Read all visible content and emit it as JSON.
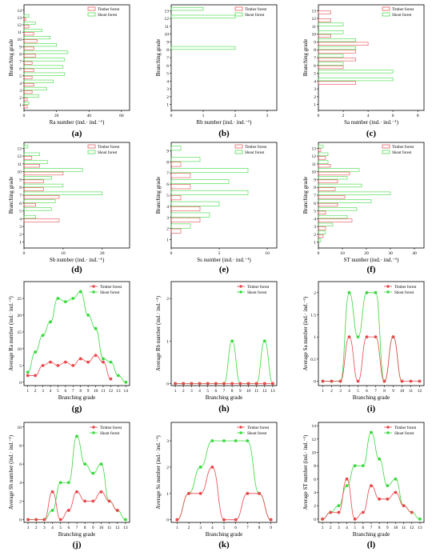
{
  "colors": {
    "timber": "#e8474c",
    "shoot": "#39d93d",
    "axis": "#000000"
  },
  "legend": {
    "timber": "Timber forest",
    "shoot": "Shoot forest"
  },
  "panel_labels": [
    "(a)",
    "(b)",
    "(c)",
    "(d)",
    "(e)",
    "(f)",
    "(g)",
    "(h)",
    "(i)",
    "(j)",
    "(k)",
    "(l)"
  ],
  "chart_data": [
    {
      "type": "bar",
      "orientation": "horizontal",
      "panel": "(a)",
      "ylabel": "Branching grade",
      "xlabel": "Ra number (ind.· ind.⁻¹)",
      "categories": [
        "1",
        "2",
        "3",
        "4",
        "5",
        "6",
        "7",
        "8",
        "9",
        "10",
        "11",
        "12",
        "13",
        "14"
      ],
      "xlim": [
        0,
        65
      ],
      "xticks": [
        0,
        20,
        40,
        60
      ],
      "series": [
        {
          "name": "Timber forest",
          "values": [
            2,
            2,
            5,
            6,
            5,
            6,
            5,
            7,
            6,
            8,
            6,
            3,
            1,
            0
          ]
        },
        {
          "name": "Shoot forest",
          "values": [
            3,
            9,
            14,
            18,
            25,
            24,
            25,
            27,
            20,
            16,
            11,
            7,
            3,
            0
          ]
        }
      ]
    },
    {
      "type": "bar",
      "orientation": "horizontal",
      "panel": "(b)",
      "ylabel": "Branching grade",
      "xlabel": "Rb number (ind.· ind.⁻¹)",
      "categories": [
        "1",
        "2",
        "3",
        "4",
        "5",
        "6",
        "7",
        "8",
        "9",
        "10",
        "11",
        "12",
        "13"
      ],
      "xlim": [
        0,
        3.3
      ],
      "xticks": [
        0,
        1,
        2,
        3
      ],
      "series": [
        {
          "name": "Timber forest",
          "values": [
            0,
            0,
            0,
            0,
            0,
            0,
            0,
            0,
            0,
            0,
            0,
            0,
            0
          ]
        },
        {
          "name": "Shoot forest",
          "values": [
            0,
            0,
            0,
            0,
            0,
            0,
            0,
            2,
            0,
            0,
            0,
            2,
            1
          ]
        }
      ]
    },
    {
      "type": "bar",
      "orientation": "horizontal",
      "panel": "(c)",
      "ylabel": "Branching grade",
      "xlabel": "Sa number (ind.· ind.⁻¹)",
      "categories": [
        "1",
        "2",
        "3",
        "4",
        "5",
        "6",
        "7",
        "8",
        "9",
        "10",
        "11",
        "12",
        "13"
      ],
      "xlim": [
        0,
        8.5
      ],
      "xticks": [
        0,
        2,
        4,
        6,
        8
      ],
      "series": [
        {
          "name": "Timber forest",
          "values": [
            0,
            0,
            0,
            3,
            0,
            2,
            3,
            3,
            4,
            1,
            0,
            1,
            1
          ]
        },
        {
          "name": "Shoot forest",
          "values": [
            0,
            0,
            0,
            6,
            6,
            2,
            2,
            3,
            3,
            2,
            2,
            0,
            0
          ]
        }
      ]
    },
    {
      "type": "bar",
      "orientation": "horizontal",
      "panel": "(d)",
      "ylabel": "Branching grade",
      "xlabel": "Sb number (ind.· ind.⁻¹)",
      "categories": [
        "1",
        "2",
        "3",
        "4",
        "5",
        "6",
        "7",
        "8",
        "9",
        "10",
        "11",
        "12",
        "13"
      ],
      "xlim": [
        0,
        27
      ],
      "xticks": [
        0,
        10,
        20
      ],
      "series": [
        {
          "name": "Timber forest",
          "values": [
            0,
            0,
            0,
            9,
            0,
            3,
            9,
            5,
            5,
            10,
            4,
            2,
            0
          ]
        },
        {
          "name": "Shoot forest",
          "values": [
            0,
            0,
            0,
            3,
            7,
            8,
            20,
            10,
            7,
            15,
            6,
            4,
            1
          ]
        }
      ]
    },
    {
      "type": "bar",
      "orientation": "horizontal",
      "panel": "(e)",
      "ylabel": "Branching grade",
      "xlabel": "Ss number (ind.· ind.⁻¹)",
      "categories": [
        "1",
        "2",
        "3",
        "4",
        "5",
        "6",
        "7",
        "8",
        "9"
      ],
      "xlim": [
        0,
        11
      ],
      "xticks": [
        0,
        5,
        10
      ],
      "series": [
        {
          "name": "Timber forest",
          "values": [
            0,
            1,
            3,
            3,
            1,
            2,
            2,
            1,
            0
          ]
        },
        {
          "name": "Shoot forest",
          "values": [
            0,
            2,
            4,
            5,
            8,
            6,
            8,
            3,
            1
          ]
        }
      ]
    },
    {
      "type": "bar",
      "orientation": "horizontal",
      "panel": "(f)",
      "ylabel": "Branching grade",
      "xlabel": "ST number (ind.· ind.⁻¹)",
      "categories": [
        "1",
        "2",
        "3",
        "4",
        "5",
        "6",
        "7",
        "8",
        "9",
        "10",
        "11",
        "12",
        "13"
      ],
      "xlim": [
        0,
        44
      ],
      "xticks": [
        0,
        10,
        20,
        30,
        40
      ],
      "series": [
        {
          "name": "Timber forest",
          "values": [
            0,
            2,
            3,
            14,
            3,
            8,
            11,
            7,
            8,
            13,
            5,
            3,
            1
          ]
        },
        {
          "name": "Shoot forest",
          "values": [
            1,
            3,
            6,
            12,
            16,
            22,
            30,
            18,
            12,
            17,
            4,
            4,
            2
          ]
        }
      ]
    },
    {
      "type": "line",
      "panel": "(g)",
      "xlabel": "Branching grade",
      "ylabel": "Average Ra number (ind.· ind.⁻¹)",
      "x": [
        1,
        2,
        3,
        4,
        5,
        6,
        7,
        8,
        9,
        10,
        11,
        12,
        13,
        14
      ],
      "xlim": [
        0.5,
        14.5
      ],
      "ylim": [
        -1,
        30
      ],
      "yticks": [
        0,
        5,
        10,
        15,
        20,
        25
      ],
      "series": [
        {
          "name": "Timber forest",
          "values": [
            2,
            2,
            5,
            6,
            5,
            6,
            5,
            7,
            6,
            8,
            6,
            1,
            null,
            null
          ]
        },
        {
          "name": "Shoot forest",
          "values": [
            3,
            9,
            14,
            18,
            25,
            24,
            25,
            27,
            20,
            16,
            7,
            6,
            2,
            0
          ]
        }
      ]
    },
    {
      "type": "line",
      "panel": "(h)",
      "xlabel": "Branching grade",
      "ylabel": "Average Rb number (ind.· ind.⁻¹)",
      "x": [
        1,
        2,
        3,
        4,
        5,
        6,
        7,
        8,
        9,
        10,
        11,
        12,
        13
      ],
      "xlim": [
        0.5,
        13.5
      ],
      "ylim": [
        -0.05,
        2.4
      ],
      "yticks": [
        0,
        1,
        2
      ],
      "series": [
        {
          "name": "Timber forest",
          "values": [
            0,
            0,
            0,
            0,
            0,
            0,
            0,
            0,
            0,
            0,
            0,
            0,
            0
          ]
        },
        {
          "name": "Shoot forest",
          "values": [
            0,
            0,
            0,
            0,
            0,
            0,
            0,
            1,
            0,
            0,
            0,
            1,
            0
          ]
        }
      ]
    },
    {
      "type": "line",
      "panel": "(i)",
      "xlabel": "Branching grade",
      "ylabel": "Average Sa number (ind.· ind.⁻¹)",
      "x": [
        1,
        2,
        3,
        4,
        5,
        6,
        7,
        8,
        9,
        10,
        11,
        12
      ],
      "xlim": [
        0.5,
        12.5
      ],
      "ylim": [
        -0.1,
        2.25
      ],
      "yticks": [
        0.0,
        0.5,
        1.0,
        1.5,
        2.0
      ],
      "series": [
        {
          "name": "Timber forest",
          "values": [
            0,
            0,
            0,
            1,
            0,
            1,
            1,
            0,
            1,
            0,
            0,
            0
          ]
        },
        {
          "name": "Shoot forest",
          "values": [
            0,
            0,
            0,
            2,
            1,
            2,
            2,
            0,
            1,
            0,
            null,
            null
          ]
        }
      ]
    },
    {
      "type": "line",
      "panel": "(j)",
      "xlabel": "Branching grade",
      "ylabel": "Average Sb number (ind.· ind.⁻¹)",
      "x": [
        1,
        2,
        3,
        4,
        5,
        6,
        7,
        8,
        9,
        10,
        11,
        12,
        13
      ],
      "xlim": [
        0.5,
        13.5
      ],
      "ylim": [
        -0.3,
        10.5
      ],
      "yticks": [
        0,
        2,
        4,
        6,
        8,
        10
      ],
      "series": [
        {
          "name": "Timber forest",
          "values": [
            0,
            0,
            0,
            3,
            0,
            1,
            3,
            2,
            2,
            3,
            2,
            1,
            null
          ]
        },
        {
          "name": "Shoot forest",
          "values": [
            0,
            0,
            0,
            1,
            4,
            4,
            9,
            6,
            5,
            6,
            2,
            1,
            0
          ]
        }
      ]
    },
    {
      "type": "line",
      "panel": "(k)",
      "xlabel": "Branching grade",
      "ylabel": "Average Ss number (ind.· ind.⁻¹)",
      "x": [
        1,
        2,
        3,
        4,
        5,
        6,
        7,
        8,
        9
      ],
      "xlim": [
        0.5,
        9.5
      ],
      "ylim": [
        -0.1,
        3.7
      ],
      "yticks": [
        0,
        1,
        2,
        3
      ],
      "series": [
        {
          "name": "Timber forest",
          "values": [
            0,
            1,
            1,
            2,
            0,
            0,
            1,
            1,
            0
          ]
        },
        {
          "name": "Shoot forest",
          "values": [
            0,
            1,
            2,
            3,
            3,
            3,
            3,
            1,
            0
          ]
        }
      ]
    },
    {
      "type": "line",
      "panel": "(l)",
      "xlabel": "Branching grade",
      "ylabel": "Average ST number (ind.· ind.⁻¹)",
      "x": [
        1,
        2,
        3,
        4,
        5,
        6,
        7,
        8,
        9,
        10,
        11,
        12,
        13
      ],
      "xlim": [
        0.5,
        13.5
      ],
      "ylim": [
        -0.5,
        14.5
      ],
      "yticks": [
        0,
        2,
        4,
        6,
        8,
        10,
        12,
        14
      ],
      "series": [
        {
          "name": "Timber forest",
          "values": [
            0,
            1,
            1,
            6,
            0,
            1,
            5,
            3,
            3,
            4,
            2,
            1,
            null
          ]
        },
        {
          "name": "Shoot forest",
          "values": [
            0,
            1,
            2,
            5,
            8,
            8,
            13,
            9,
            5,
            6,
            2,
            1,
            0
          ]
        }
      ]
    }
  ]
}
